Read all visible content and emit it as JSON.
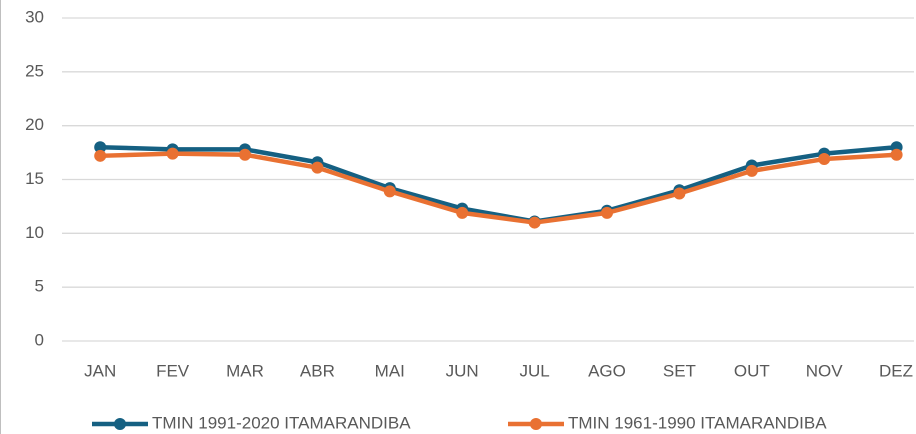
{
  "chart_data": {
    "type": "line",
    "categories": [
      "JAN",
      "FEV",
      "MAR",
      "ABR",
      "MAI",
      "JUN",
      "JUL",
      "AGO",
      "SET",
      "OUT",
      "NOV",
      "DEZ"
    ],
    "series": [
      {
        "name": "TMIN 1991-2020 ITAMARANDIBA",
        "color": "#156082",
        "values": [
          18.0,
          17.8,
          17.8,
          16.6,
          14.2,
          12.3,
          11.1,
          12.1,
          14.0,
          16.3,
          17.4,
          18.0
        ]
      },
      {
        "name": "TMIN 1961-1990 ITAMARANDIBA",
        "color": "#e97132",
        "values": [
          17.2,
          17.4,
          17.3,
          16.1,
          13.9,
          11.9,
          11.0,
          11.9,
          13.7,
          15.8,
          16.9,
          17.3
        ]
      }
    ],
    "ylim": [
      0,
      30
    ],
    "yticks": [
      0,
      5,
      10,
      15,
      20,
      25,
      30
    ],
    "grid": true,
    "legend": "bottom"
  }
}
